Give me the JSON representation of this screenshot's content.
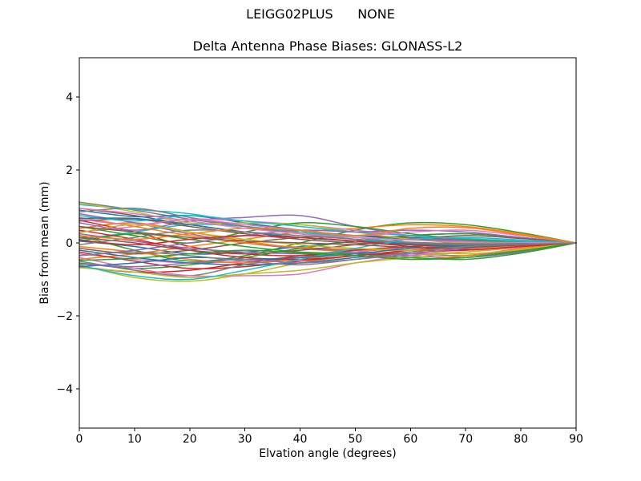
{
  "figure": {
    "suptitle": "LEIGG02PLUS      NONE",
    "background": "#ffffff",
    "text_color": "#000000"
  },
  "chart_data": {
    "type": "line",
    "title": "Delta Antenna Phase Biases: GLONASS-L2",
    "xlabel": "Elvation angle (degrees)",
    "ylabel": "Bias from mean (mm)",
    "xlim": [
      0,
      90
    ],
    "ylim": [
      -5.08,
      5.08
    ],
    "xticks": [
      0,
      10,
      20,
      30,
      40,
      50,
      60,
      70,
      80,
      90
    ],
    "xtick_labels": [
      "0",
      "10",
      "20",
      "30",
      "40",
      "50",
      "60",
      "70",
      "80",
      "90"
    ],
    "yticks": [
      -4,
      -2,
      0,
      2,
      4
    ],
    "ytick_labels": [
      "−4",
      "−2",
      "0",
      "2",
      "4"
    ],
    "grid": false,
    "legend": "none",
    "line_width": 1.5,
    "x": [
      0,
      10,
      20,
      30,
      40,
      50,
      60,
      70,
      80,
      90
    ],
    "series": [
      {
        "color": "#1f77b4",
        "values": [
          0.05,
          -0.1,
          -0.3,
          -0.25,
          -0.1,
          0.05,
          0.2,
          0.25,
          0.15,
          0
        ]
      },
      {
        "color": "#ff7f0e",
        "values": [
          0.4,
          0.55,
          0.3,
          0.05,
          -0.15,
          -0.25,
          -0.3,
          -0.25,
          -0.12,
          0
        ]
      },
      {
        "color": "#2ca02c",
        "values": [
          0.2,
          -0.2,
          -0.5,
          -0.35,
          0.0,
          0.35,
          0.55,
          0.5,
          0.28,
          0
        ]
      },
      {
        "color": "#d62728",
        "values": [
          0.62,
          0.3,
          -0.1,
          -0.3,
          -0.35,
          -0.25,
          -0.1,
          0.05,
          0.05,
          0
        ]
      },
      {
        "color": "#9467bd",
        "values": [
          0.8,
          0.55,
          0.25,
          0.0,
          -0.15,
          -0.2,
          -0.15,
          -0.05,
          0.0,
          0
        ]
      },
      {
        "color": "#8c564b",
        "values": [
          0.95,
          0.75,
          0.5,
          0.3,
          0.15,
          0.05,
          0.0,
          -0.02,
          -0.02,
          0
        ]
      },
      {
        "color": "#e377c2",
        "values": [
          -0.3,
          -0.45,
          -0.55,
          -0.5,
          -0.4,
          -0.25,
          -0.1,
          0.0,
          0.02,
          0
        ]
      },
      {
        "color": "#7f7f7f",
        "values": [
          1.12,
          0.9,
          0.65,
          0.45,
          0.3,
          0.2,
          0.12,
          0.07,
          0.03,
          0
        ]
      },
      {
        "color": "#bcbd22",
        "values": [
          -0.6,
          -0.95,
          -1.05,
          -0.85,
          -0.55,
          -0.35,
          -0.2,
          -0.1,
          -0.04,
          0
        ]
      },
      {
        "color": "#17becf",
        "values": [
          1.05,
          0.92,
          0.8,
          0.55,
          0.3,
          0.1,
          -0.05,
          -0.1,
          -0.08,
          0
        ]
      },
      {
        "color": "#1f77b4",
        "values": [
          0.9,
          0.72,
          0.75,
          0.55,
          0.35,
          0.2,
          0.1,
          0.04,
          0.02,
          0
        ]
      },
      {
        "color": "#ff7f0e",
        "values": [
          -0.45,
          -0.3,
          -0.1,
          0.1,
          0.3,
          0.4,
          0.5,
          0.45,
          0.25,
          0
        ]
      },
      {
        "color": "#2ca02c",
        "values": [
          -0.55,
          -0.7,
          -0.6,
          -0.4,
          -0.15,
          0.05,
          0.2,
          0.25,
          0.15,
          0
        ]
      },
      {
        "color": "#d62728",
        "values": [
          -0.25,
          -0.5,
          -0.7,
          -0.65,
          -0.5,
          -0.35,
          -0.2,
          -0.1,
          -0.05,
          0
        ]
      },
      {
        "color": "#9467bd",
        "values": [
          0.55,
          0.35,
          0.6,
          0.7,
          0.75,
          0.45,
          0.2,
          0.05,
          0.0,
          0
        ]
      },
      {
        "color": "#8c564b",
        "values": [
          -0.15,
          -0.3,
          -0.2,
          0.0,
          0.15,
          0.2,
          0.15,
          0.1,
          0.05,
          0
        ]
      },
      {
        "color": "#e377c2",
        "values": [
          0.3,
          0.45,
          0.65,
          0.6,
          0.5,
          0.35,
          0.2,
          0.1,
          0.04,
          0
        ]
      },
      {
        "color": "#7f7f7f",
        "values": [
          -0.5,
          -0.75,
          -0.9,
          -0.6,
          -0.4,
          -0.3,
          -0.3,
          -0.35,
          -0.2,
          0
        ]
      },
      {
        "color": "#bcbd22",
        "values": [
          1.1,
          0.85,
          0.55,
          0.55,
          0.5,
          0.3,
          0.1,
          0.0,
          -0.02,
          0
        ]
      },
      {
        "color": "#17becf",
        "values": [
          0.1,
          0.3,
          0.5,
          0.45,
          0.3,
          0.15,
          0.0,
          -0.1,
          -0.07,
          0
        ]
      },
      {
        "color": "#1f77b4",
        "values": [
          -0.2,
          -0.4,
          -0.55,
          -0.6,
          -0.55,
          -0.4,
          -0.25,
          -0.12,
          -0.05,
          0
        ]
      },
      {
        "color": "#ff7f0e",
        "values": [
          0.7,
          0.45,
          0.2,
          0.0,
          -0.12,
          -0.18,
          -0.2,
          -0.15,
          -0.08,
          0
        ]
      },
      {
        "color": "#2ca02c",
        "values": [
          0.45,
          0.2,
          0.0,
          0.3,
          0.55,
          0.45,
          0.25,
          0.1,
          0.03,
          0
        ]
      },
      {
        "color": "#d62728",
        "values": [
          -0.65,
          -0.8,
          -0.75,
          -0.55,
          -0.35,
          -0.2,
          -0.1,
          -0.05,
          -0.02,
          0
        ]
      },
      {
        "color": "#9467bd",
        "values": [
          0.25,
          0.05,
          -0.15,
          -0.25,
          -0.3,
          -0.25,
          -0.35,
          -0.4,
          -0.25,
          0
        ]
      },
      {
        "color": "#8c564b",
        "values": [
          0.6,
          0.65,
          0.45,
          0.25,
          0.1,
          0.0,
          -0.05,
          -0.08,
          -0.05,
          0
        ]
      },
      {
        "color": "#e377c2",
        "values": [
          -0.4,
          -0.7,
          -0.9,
          -0.9,
          -0.85,
          -0.55,
          -0.35,
          -0.25,
          -0.12,
          0
        ]
      },
      {
        "color": "#7f7f7f",
        "values": [
          0.85,
          0.95,
          0.7,
          0.45,
          0.25,
          0.1,
          0.02,
          -0.02,
          -0.02,
          0
        ]
      },
      {
        "color": "#bcbd22",
        "values": [
          -0.68,
          -0.8,
          -0.95,
          -0.85,
          -0.75,
          -0.55,
          -0.4,
          -0.25,
          -0.1,
          0
        ]
      },
      {
        "color": "#17becf",
        "values": [
          0.75,
          0.6,
          0.75,
          0.6,
          0.45,
          0.3,
          0.2,
          0.12,
          0.05,
          0
        ]
      },
      {
        "color": "#1f77b4",
        "values": [
          0.67,
          0.67,
          0.5,
          0.3,
          0.15,
          0.05,
          -0.02,
          -0.05,
          -0.03,
          0
        ]
      },
      {
        "color": "#ff7f0e",
        "values": [
          -0.1,
          -0.25,
          -0.45,
          -0.55,
          -0.45,
          -0.3,
          -0.45,
          -0.35,
          -0.15,
          0
        ]
      },
      {
        "color": "#2ca02c",
        "values": [
          0.05,
          0.25,
          0.1,
          -0.1,
          -0.25,
          -0.3,
          -0.4,
          -0.45,
          -0.28,
          0
        ]
      },
      {
        "color": "#d62728",
        "values": [
          0.35,
          0.1,
          -0.2,
          -0.4,
          -0.45,
          -0.35,
          -0.25,
          -0.2,
          -0.1,
          0
        ]
      },
      {
        "color": "#9467bd",
        "values": [
          -0.35,
          -0.2,
          0.0,
          0.2,
          0.35,
          0.3,
          0.35,
          0.3,
          0.15,
          0
        ]
      },
      {
        "color": "#8c564b",
        "values": [
          0.15,
          0.0,
          -0.2,
          -0.3,
          -0.2,
          -0.05,
          0.1,
          0.2,
          0.12,
          0
        ]
      },
      {
        "color": "#e377c2",
        "values": [
          0.65,
          0.5,
          0.65,
          0.5,
          0.35,
          0.2,
          0.3,
          0.35,
          0.2,
          0
        ]
      },
      {
        "color": "#7f7f7f",
        "values": [
          -0.05,
          0.15,
          0.35,
          0.3,
          0.2,
          0.1,
          0.0,
          -0.05,
          -0.03,
          0
        ]
      },
      {
        "color": "#bcbd22",
        "values": [
          0.28,
          0.5,
          0.3,
          0.1,
          -0.05,
          -0.15,
          -0.2,
          -0.3,
          -0.18,
          0
        ]
      },
      {
        "color": "#17becf",
        "values": [
          -0.62,
          -0.9,
          -1.0,
          -0.75,
          -0.45,
          -0.15,
          0.1,
          0.15,
          0.08,
          0
        ]
      },
      {
        "color": "#1f77b4",
        "values": [
          -0.65,
          -0.55,
          -0.4,
          -0.45,
          -0.4,
          -0.3,
          -0.15,
          -0.08,
          -0.03,
          0
        ]
      },
      {
        "color": "#ff7f0e",
        "values": [
          0.2,
          0.1,
          0.25,
          0.4,
          0.35,
          0.2,
          0.4,
          0.42,
          0.22,
          0
        ]
      },
      {
        "color": "#2ca02c",
        "values": [
          -0.48,
          -0.42,
          -0.3,
          -0.2,
          -0.28,
          -0.35,
          -0.45,
          -0.4,
          -0.22,
          0
        ]
      },
      {
        "color": "#d62728",
        "values": [
          0.08,
          -0.05,
          0.1,
          0.2,
          0.15,
          0.05,
          -0.1,
          -0.18,
          -0.1,
          0
        ]
      },
      {
        "color": "#9467bd",
        "values": [
          -0.58,
          -0.65,
          -0.55,
          -0.45,
          -0.55,
          -0.45,
          -0.3,
          -0.15,
          -0.06,
          0
        ]
      },
      {
        "color": "#8c564b",
        "values": [
          0.45,
          0.3,
          0.15,
          0.05,
          0.0,
          -0.05,
          -0.12,
          -0.12,
          -0.06,
          0
        ]
      },
      {
        "color": "#e377c2",
        "values": [
          0.95,
          0.8,
          0.6,
          0.4,
          0.25,
          0.15,
          0.08,
          0.03,
          0.01,
          0
        ]
      },
      {
        "color": "#7f7f7f",
        "values": [
          -0.35,
          -0.25,
          -0.35,
          -0.5,
          -0.6,
          -0.45,
          -0.25,
          -0.1,
          -0.04,
          0
        ]
      }
    ]
  }
}
